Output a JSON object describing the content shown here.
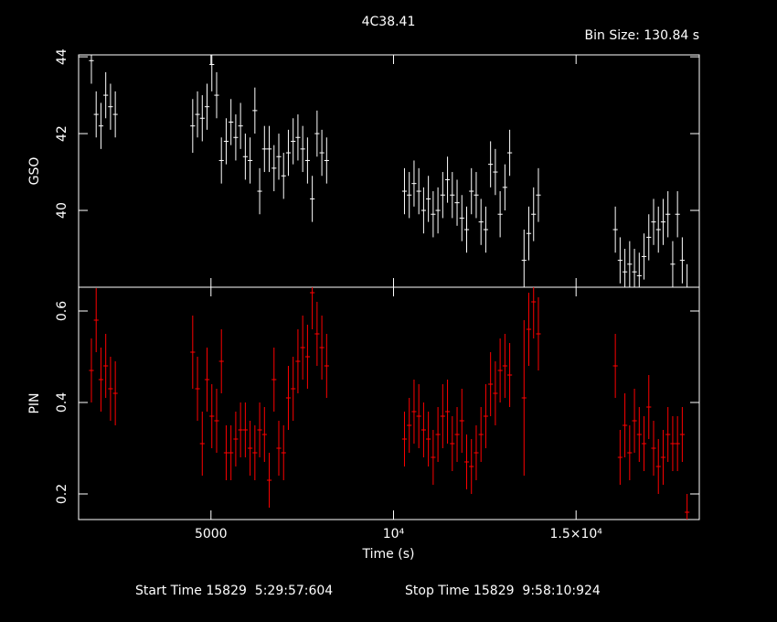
{
  "chart_data": [
    {
      "type": "errorbar",
      "title": "4C38.41",
      "annotation": "Bin Size: 130.84 s",
      "y_label": "GSO",
      "color": "#ffffff",
      "xlim": [
        1375,
        18375
      ],
      "xticks": [
        5000,
        10000,
        15000
      ],
      "ylim": [
        38,
        44.05
      ],
      "yticks": [
        40,
        42,
        44
      ],
      "x": [
        1725,
        1856,
        1987,
        2118,
        2249,
        2380,
        4500,
        4631,
        4762,
        4893,
        5024,
        5155,
        5286,
        5417,
        5548,
        5679,
        5810,
        5941,
        6072,
        6203,
        6334,
        6465,
        6596,
        6727,
        6858,
        6989,
        7120,
        7251,
        7382,
        7513,
        7644,
        7775,
        7906,
        8037,
        8168,
        10300,
        10431,
        10562,
        10693,
        10824,
        10955,
        11086,
        11217,
        11348,
        11479,
        11610,
        11741,
        11872,
        12003,
        12134,
        12265,
        12396,
        12527,
        12658,
        12789,
        12920,
        13051,
        13182,
        13575,
        13706,
        13837,
        13968,
        16075,
        16206,
        16337,
        16468,
        16599,
        16730,
        16861,
        16992,
        17123,
        17254,
        17385,
        17516,
        17647,
        17778,
        17909,
        18040
      ],
      "values": [
        43.9,
        42.5,
        42.2,
        43.0,
        42.7,
        42.5,
        42.2,
        42.5,
        42.4,
        42.7,
        43.8,
        43.0,
        41.3,
        41.8,
        42.3,
        41.9,
        42.2,
        41.4,
        41.3,
        42.6,
        40.5,
        41.6,
        41.6,
        41.1,
        41.4,
        40.9,
        41.5,
        41.8,
        41.9,
        41.6,
        41.3,
        40.3,
        42.0,
        41.5,
        41.3,
        40.5,
        40.4,
        40.7,
        40.5,
        40.0,
        40.3,
        39.9,
        40.0,
        40.4,
        40.8,
        40.4,
        40.2,
        39.8,
        39.5,
        40.5,
        40.4,
        39.7,
        39.5,
        41.2,
        41.0,
        39.9,
        40.6,
        41.5,
        38.7,
        39.4,
        39.9,
        40.4,
        39.5,
        38.7,
        38.4,
        38.6,
        38.4,
        38.3,
        38.8,
        39.3,
        39.7,
        39.5,
        39.7,
        39.9,
        38.6,
        39.9,
        38.7,
        38.0
      ],
      "errors": [
        0.6,
        0.6,
        0.6,
        0.6,
        0.6,
        0.6,
        0.7,
        0.6,
        0.6,
        0.6,
        0.7,
        0.6,
        0.6,
        0.6,
        0.6,
        0.6,
        0.6,
        0.6,
        0.6,
        0.6,
        0.6,
        0.6,
        0.6,
        0.6,
        0.6,
        0.6,
        0.6,
        0.6,
        0.6,
        0.6,
        0.6,
        0.6,
        0.6,
        0.6,
        0.6,
        0.6,
        0.6,
        0.6,
        0.6,
        0.6,
        0.6,
        0.6,
        0.6,
        0.6,
        0.6,
        0.6,
        0.6,
        0.6,
        0.6,
        0.6,
        0.6,
        0.6,
        0.6,
        0.6,
        0.6,
        0.6,
        0.6,
        0.6,
        0.8,
        0.7,
        0.7,
        0.7,
        0.6,
        0.6,
        0.6,
        0.6,
        0.6,
        0.6,
        0.6,
        0.6,
        0.6,
        0.6,
        0.6,
        0.6,
        0.6,
        0.6,
        0.6,
        0.6
      ]
    },
    {
      "type": "errorbar",
      "x_label": "Time (s)",
      "y_label": "PIN",
      "color": "#ff0000",
      "xlim": [
        1375,
        18375
      ],
      "xticks": [
        5000,
        {
          "value": 10000,
          "label": "10⁴"
        },
        {
          "value": 15000,
          "label": "1.5×10⁴"
        }
      ],
      "ylim": [
        0.144,
        0.652
      ],
      "yticks": [
        0.2,
        0.4,
        0.6
      ],
      "x": [
        1725,
        1856,
        1987,
        2118,
        2249,
        2380,
        4500,
        4631,
        4762,
        4893,
        5024,
        5155,
        5286,
        5417,
        5548,
        5679,
        5810,
        5941,
        6072,
        6203,
        6334,
        6465,
        6596,
        6727,
        6858,
        6989,
        7120,
        7251,
        7382,
        7513,
        7644,
        7775,
        7906,
        8037,
        8168,
        10300,
        10431,
        10562,
        10693,
        10824,
        10955,
        11086,
        11217,
        11348,
        11479,
        11610,
        11741,
        11872,
        12003,
        12134,
        12265,
        12396,
        12527,
        12658,
        12789,
        12920,
        13051,
        13182,
        13575,
        13706,
        13837,
        13968,
        16075,
        16206,
        16337,
        16468,
        16599,
        16730,
        16861,
        16992,
        17123,
        17254,
        17385,
        17516,
        17647,
        17778,
        17909,
        18040
      ],
      "values": [
        0.47,
        0.58,
        0.45,
        0.48,
        0.43,
        0.42,
        0.51,
        0.43,
        0.31,
        0.45,
        0.37,
        0.36,
        0.49,
        0.29,
        0.29,
        0.32,
        0.34,
        0.34,
        0.3,
        0.29,
        0.34,
        0.33,
        0.23,
        0.45,
        0.3,
        0.29,
        0.41,
        0.43,
        0.49,
        0.52,
        0.5,
        0.64,
        0.55,
        0.52,
        0.48,
        0.32,
        0.35,
        0.38,
        0.37,
        0.34,
        0.32,
        0.28,
        0.33,
        0.37,
        0.38,
        0.31,
        0.33,
        0.36,
        0.27,
        0.26,
        0.29,
        0.33,
        0.37,
        0.44,
        0.42,
        0.47,
        0.48,
        0.46,
        0.41,
        0.56,
        0.62,
        0.55,
        0.48,
        0.28,
        0.35,
        0.29,
        0.36,
        0.33,
        0.31,
        0.39,
        0.3,
        0.26,
        0.28,
        0.33,
        0.31,
        0.31,
        0.33,
        0.16
      ],
      "errors": [
        0.07,
        0.07,
        0.07,
        0.07,
        0.07,
        0.07,
        0.08,
        0.07,
        0.07,
        0.07,
        0.07,
        0.07,
        0.07,
        0.06,
        0.06,
        0.06,
        0.06,
        0.06,
        0.06,
        0.06,
        0.06,
        0.06,
        0.06,
        0.07,
        0.06,
        0.06,
        0.07,
        0.07,
        0.07,
        0.07,
        0.07,
        0.08,
        0.07,
        0.07,
        0.07,
        0.06,
        0.06,
        0.07,
        0.07,
        0.06,
        0.06,
        0.06,
        0.06,
        0.07,
        0.07,
        0.06,
        0.06,
        0.07,
        0.06,
        0.06,
        0.06,
        0.06,
        0.07,
        0.07,
        0.07,
        0.07,
        0.07,
        0.07,
        0.17,
        0.08,
        0.08,
        0.08,
        0.07,
        0.06,
        0.07,
        0.06,
        0.07,
        0.06,
        0.06,
        0.07,
        0.06,
        0.06,
        0.06,
        0.06,
        0.06,
        0.06,
        0.06,
        0.04
      ]
    }
  ],
  "footer": {
    "start": "Start Time 15829  5:29:57:604",
    "stop": "Stop Time 15829  9:58:10:924"
  }
}
